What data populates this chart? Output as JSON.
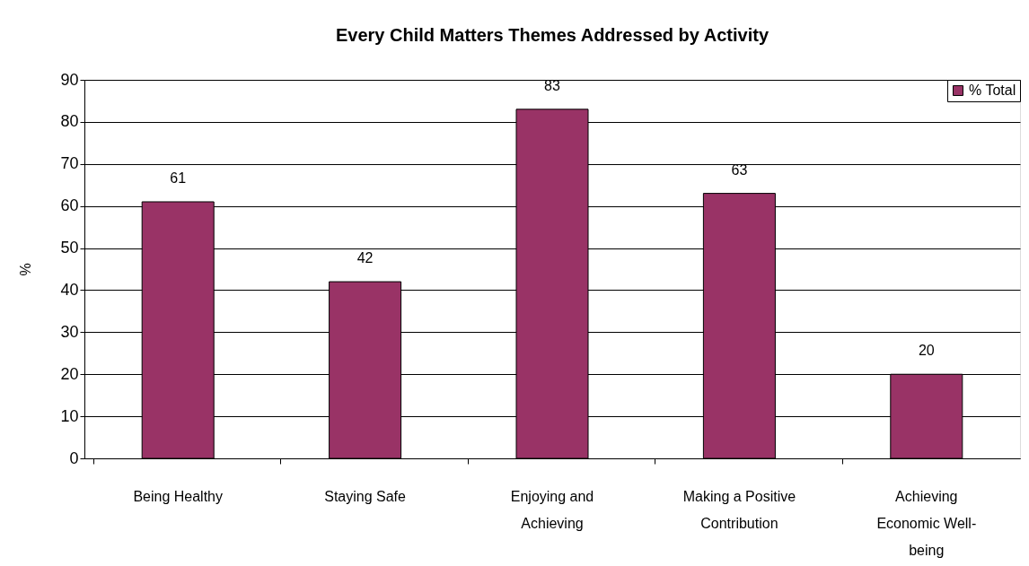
{
  "chart_data": {
    "type": "bar",
    "title": "Every Child Matters Themes Addressed by Activity",
    "ylabel": "%",
    "categories": [
      "Being Healthy",
      "Staying Safe",
      "Enjoying and Achieving",
      "Making a Positive Contribution",
      "Achieving Economic Well-being"
    ],
    "series": [
      {
        "name": "% Total",
        "color": "#993366",
        "values": [
          61,
          42,
          83,
          63,
          20
        ]
      }
    ],
    "ylim": [
      0,
      90
    ],
    "yticks": [
      0,
      10,
      20,
      30,
      40,
      50,
      60,
      70,
      80,
      90
    ],
    "grid": "y",
    "legend": "top right",
    "data_labels": true
  }
}
